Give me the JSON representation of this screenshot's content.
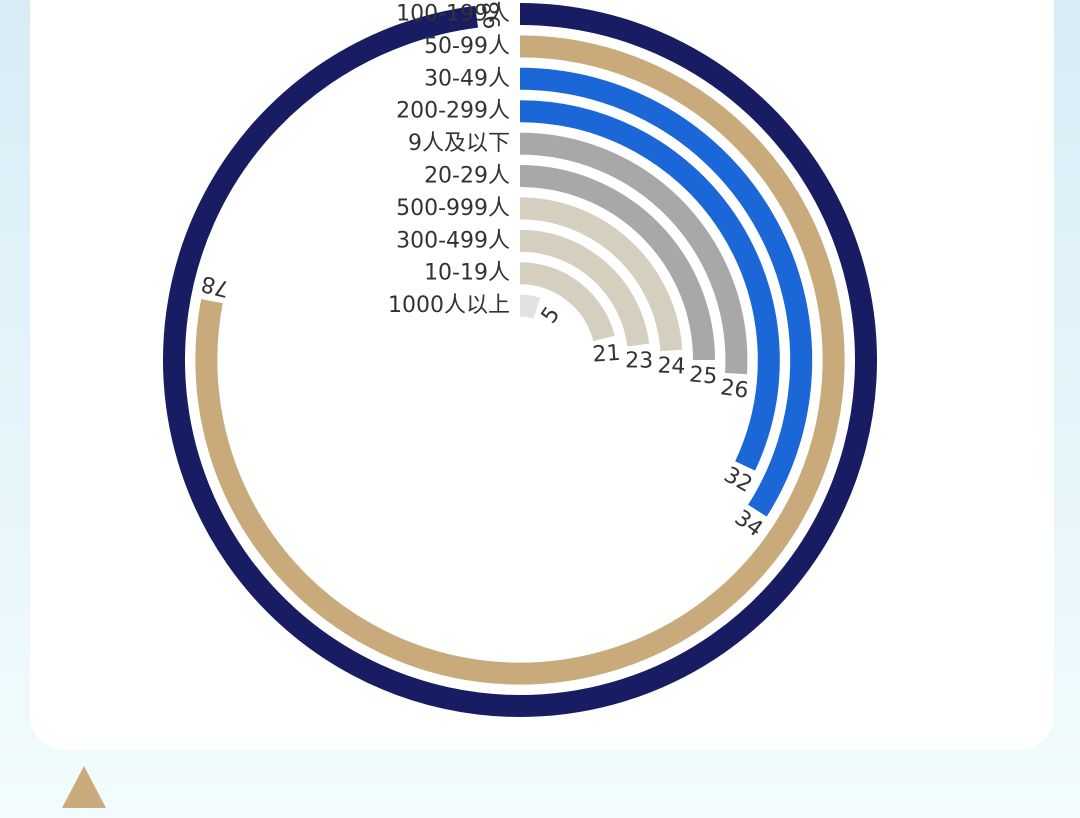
{
  "chart_data": {
    "type": "radial_bar",
    "max": 100,
    "categories": [
      "100-199人",
      "50-99人",
      "30-49人",
      "200-299人",
      "9人及以下",
      "20-29人",
      "500-999人",
      "300-499人",
      "10-19人",
      "1000人以上"
    ],
    "values": [
      98,
      78,
      34,
      32,
      26,
      25,
      24,
      23,
      21,
      5
    ],
    "colors": [
      "#171c63",
      "#c9ab7b",
      "#1b67d8",
      "#1b67d8",
      "#a8a8a8",
      "#a8a8a8",
      "#d4cfbf",
      "#d4cfbf",
      "#d4cfbf",
      "#e2e2e2"
    ]
  },
  "decor": {
    "triangle_color": "#c9ab7b"
  }
}
